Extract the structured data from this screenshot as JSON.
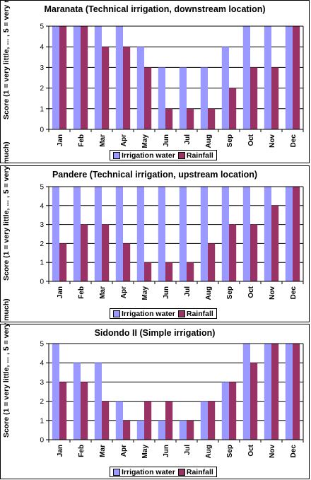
{
  "colors": {
    "irrigation": "#9999ff",
    "rainfall": "#993366"
  },
  "chart_data": [
    {
      "type": "bar",
      "title": "Maranata (Technical irrigation, downstream location)",
      "ylabel": "Score (1 = very little, ... , 5 = very much)",
      "xlabel": "",
      "ylim": [
        0,
        5
      ],
      "yticks": [
        0,
        1,
        2,
        3,
        4,
        5
      ],
      "grid": true,
      "legend": "bottom",
      "categories": [
        "Jan",
        "Feb",
        "Mar",
        "Apr",
        "May",
        "Jun",
        "Jul",
        "Aug",
        "Sep",
        "Oct",
        "Nov",
        "Dec"
      ],
      "series": [
        {
          "name": "Irrigation water",
          "values": [
            5,
            5,
            5,
            5,
            4,
            3,
            3,
            3,
            4,
            5,
            5,
            5
          ]
        },
        {
          "name": "Rainfall",
          "values": [
            5,
            5,
            4,
            4,
            3,
            1,
            1,
            1,
            2,
            3,
            3,
            5
          ]
        }
      ]
    },
    {
      "type": "bar",
      "title": "Pandere (Technical irrigation, upstream location)",
      "ylabel": "Score (1 = very little, ... , 5 = very much)",
      "xlabel": "",
      "ylim": [
        0,
        5
      ],
      "yticks": [
        0,
        1,
        2,
        3,
        4,
        5
      ],
      "grid": true,
      "legend": "bottom",
      "categories": [
        "Jan",
        "Feb",
        "Mar",
        "Apr",
        "May",
        "Jun",
        "Jul",
        "Aug",
        "Sep",
        "Oct",
        "Nov",
        "Dec"
      ],
      "series": [
        {
          "name": "Irrigation water",
          "values": [
            5,
            5,
            5,
            5,
            5,
            5,
            5,
            5,
            5,
            5,
            5,
            5
          ]
        },
        {
          "name": "Rainfall",
          "values": [
            2,
            3,
            3,
            2,
            1,
            1,
            1,
            2,
            3,
            3,
            4,
            5
          ]
        }
      ]
    },
    {
      "type": "bar",
      "title": "Sidondo II (Simple irrigation)",
      "ylabel": "Score (1 = very little, ... , 5 = very much)",
      "xlabel": "",
      "ylim": [
        0,
        5
      ],
      "yticks": [
        0,
        1,
        2,
        3,
        4,
        5
      ],
      "grid": true,
      "legend": "bottom",
      "categories": [
        "Jan",
        "Feb",
        "Mar",
        "Apr",
        "May",
        "Jun",
        "Jul",
        "Aug",
        "Sep",
        "Oct",
        "Nov",
        "Dec"
      ],
      "series": [
        {
          "name": "Irrigation water",
          "values": [
            5,
            4,
            4,
            2,
            1,
            1,
            1,
            2,
            3,
            5,
            5,
            5
          ]
        },
        {
          "name": "Rainfall",
          "values": [
            3,
            3,
            2,
            1,
            2,
            2,
            1,
            2,
            3,
            4,
            5,
            5
          ]
        }
      ]
    }
  ]
}
